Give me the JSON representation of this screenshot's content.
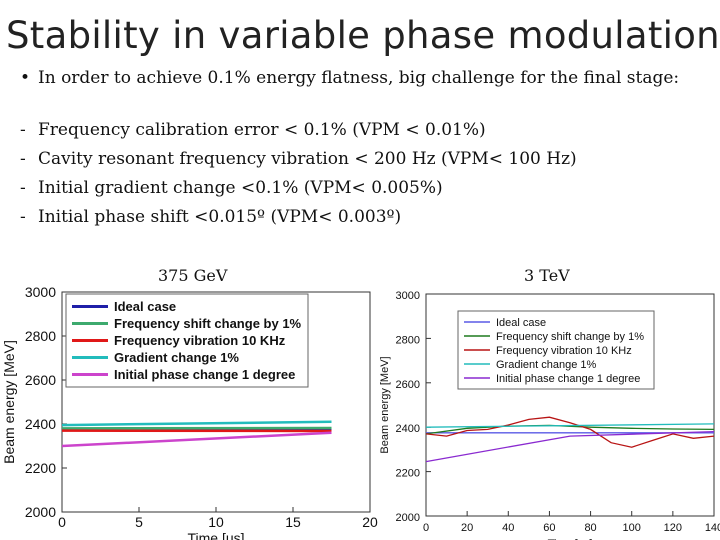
{
  "slide": {
    "title": "Stability in variable phase modulation",
    "bullet_mark": "•",
    "bullet": "In order to achieve 0.1% energy flatness, big challenge for the final stage:",
    "items": [
      {
        "dash": "-",
        "text": "Frequency calibration error < 0.1% (VPM < 0.01%)"
      },
      {
        "dash": "-",
        "text": "Cavity resonant frequency vibration < 200 Hz (VPM< 100 Hz)"
      },
      {
        "dash": "-",
        "text": "Initial gradient change <0.1% (VPM< 0.005%)"
      },
      {
        "dash": "-",
        "text": "Initial phase shift <0.015º (VPM< 0.003º)"
      }
    ],
    "plot_titles": [
      "375 GeV",
      "3 TeV"
    ]
  },
  "chart_data": [
    {
      "type": "line",
      "title": "375 GeV",
      "xlabel": "Time [us]",
      "ylabel": "Beam energy [MeV]",
      "xlim": [
        0,
        20
      ],
      "ylim": [
        2000,
        3000
      ],
      "x_ticks": [
        "0",
        "5",
        "10",
        "15",
        "20"
      ],
      "y_ticks": [
        "2000",
        "2200",
        "2400",
        "2600",
        "2800",
        "3000"
      ],
      "legend_position": "top",
      "series": [
        {
          "name": "Ideal case",
          "color": "#1f1fa8",
          "x": [
            0,
            17.5
          ],
          "y": [
            2372,
            2372
          ]
        },
        {
          "name": "Frequency shift change by 1%",
          "color": "#3daa6e",
          "x": [
            0,
            17.5
          ],
          "y": [
            2380,
            2382
          ]
        },
        {
          "name": "Frequency vibration 10 KHz",
          "color": "#e01818",
          "x": [
            0,
            17.5
          ],
          "y": [
            2370,
            2368
          ]
        },
        {
          "name": "Gradient change 1%",
          "color": "#22bcbc",
          "x": [
            0,
            17.5
          ],
          "y": [
            2395,
            2410
          ]
        },
        {
          "name": "Initial phase change 1 degree",
          "color": "#cc44cc",
          "x": [
            0,
            17.5
          ],
          "y": [
            2300,
            2360
          ]
        }
      ]
    },
    {
      "type": "line",
      "title": "3 TeV",
      "xlabel": "Time [us]",
      "ylabel": "Beam energy [MeV]",
      "xlim": [
        0,
        140
      ],
      "ylim": [
        2000,
        3000
      ],
      "x_ticks": [
        "0",
        "20",
        "40",
        "60",
        "80",
        "100",
        "120",
        "140"
      ],
      "y_ticks": [
        "2000",
        "2200",
        "2400",
        "2600",
        "2800",
        "3000"
      ],
      "legend_position": "top",
      "series": [
        {
          "name": "Ideal case",
          "color": "#5a5ae6",
          "x": [
            0,
            140
          ],
          "y": [
            2375,
            2375
          ]
        },
        {
          "name": "Frequency shift change by 1%",
          "color": "#1e7a1e",
          "x": [
            0,
            20,
            40,
            60,
            80,
            100,
            120,
            140
          ],
          "y": [
            2370,
            2395,
            2405,
            2408,
            2400,
            2395,
            2392,
            2390
          ]
        },
        {
          "name": "Frequency vibration 10 KHz",
          "color": "#b81414",
          "x": [
            0,
            10,
            20,
            30,
            40,
            50,
            60,
            70,
            80,
            90,
            100,
            110,
            120,
            130,
            140
          ],
          "y": [
            2370,
            2360,
            2385,
            2390,
            2410,
            2435,
            2445,
            2420,
            2390,
            2330,
            2310,
            2340,
            2370,
            2350,
            2360
          ]
        },
        {
          "name": "Gradient change 1%",
          "color": "#22bcbc",
          "x": [
            0,
            140
          ],
          "y": [
            2400,
            2415
          ]
        },
        {
          "name": "Initial phase change 1 degree",
          "color": "#8a2ad0",
          "x": [
            0,
            70,
            140
          ],
          "y": [
            2245,
            2360,
            2380
          ]
        }
      ]
    }
  ]
}
